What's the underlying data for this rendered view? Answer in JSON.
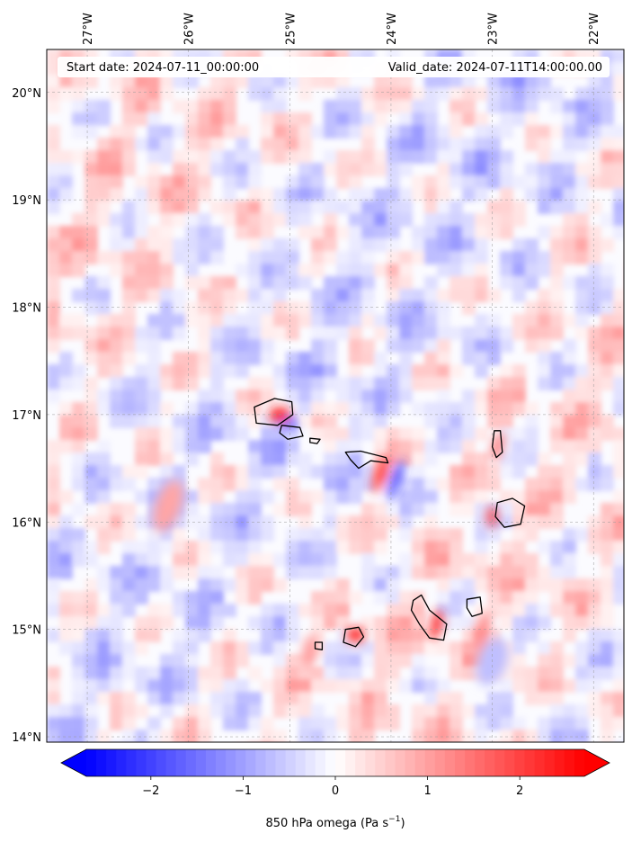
{
  "header": {
    "start_label": "Start date: 2024-07-11_00:00:00",
    "valid_label": "Valid_date: 2024-07-11T14:00:00.00"
  },
  "lon_ticks": [
    {
      "value": -27,
      "label": "27°W"
    },
    {
      "value": -26,
      "label": "26°W"
    },
    {
      "value": -25,
      "label": "25°W"
    },
    {
      "value": -24,
      "label": "24°W"
    },
    {
      "value": -23,
      "label": "23°W"
    },
    {
      "value": -22,
      "label": "22°W"
    }
  ],
  "lat_ticks": [
    {
      "value": 20,
      "label": "20°N"
    },
    {
      "value": 19,
      "label": "19°N"
    },
    {
      "value": 18,
      "label": "18°N"
    },
    {
      "value": 17,
      "label": "17°N"
    },
    {
      "value": 16,
      "label": "16°N"
    },
    {
      "value": 15,
      "label": "15°N"
    },
    {
      "value": 14,
      "label": "14°N"
    }
  ],
  "extent": {
    "lon_min": -27.4,
    "lon_max": -21.7,
    "lat_min": 13.95,
    "lat_max": 20.4
  },
  "colorbar": {
    "label_prefix": "850 hPa omega (Pa s",
    "label_exp": "−1",
    "label_suffix": ")",
    "min": -2.7,
    "max": 2.7,
    "ticks": [
      {
        "value": -2,
        "label": "−2"
      },
      {
        "value": -1,
        "label": "−1"
      },
      {
        "value": 0,
        "label": "0"
      },
      {
        "value": 1,
        "label": "1"
      },
      {
        "value": 2,
        "label": "2"
      }
    ],
    "colormap": "bwr",
    "low_color": "#0000ff",
    "mid_color": "#ffffff",
    "high_color": "#ff0000"
  },
  "map_features": {
    "gridlines": true,
    "field": "850 hPa omega",
    "islands": [
      {
        "name": "Santo Antão",
        "lon": -24.95,
        "lat": 17.02
      },
      {
        "name": "São Vicente",
        "lon": -24.95,
        "lat": 16.85
      },
      {
        "name": "Santa Luzia",
        "lon": -24.7,
        "lat": 16.75
      },
      {
        "name": "São Nicolau",
        "lon": -24.3,
        "lat": 16.6
      },
      {
        "name": "Sal",
        "lon": -22.95,
        "lat": 16.75
      },
      {
        "name": "Boa Vista",
        "lon": -22.8,
        "lat": 16.1
      },
      {
        "name": "Santiago",
        "lon": -23.62,
        "lat": 15.07
      },
      {
        "name": "Maio",
        "lon": -23.18,
        "lat": 15.2
      },
      {
        "name": "Fogo",
        "lon": -24.37,
        "lat": 14.93
      },
      {
        "name": "Brava",
        "lon": -24.7,
        "lat": 14.85
      }
    ]
  }
}
